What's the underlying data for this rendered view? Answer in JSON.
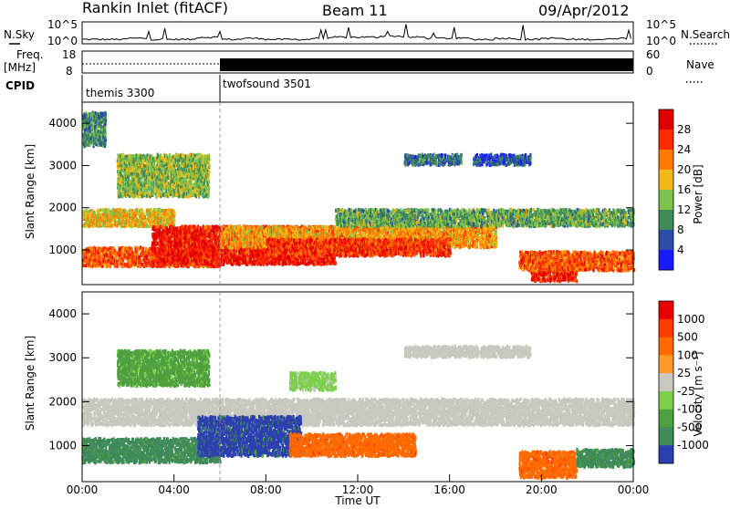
{
  "header": {
    "station": "Rankin Inlet (fitACF)",
    "beam": "Beam 11",
    "date": "09/Apr/2012"
  },
  "chart_data": [
    {
      "type": "line",
      "panel": "noise",
      "left_label": "N.Sky",
      "right_label": "N.Search",
      "left_ticks": [
        "10^5",
        "10^0"
      ],
      "right_ticks": [
        "10^5",
        "10^0"
      ],
      "x": [
        "00:00",
        "01:00",
        "02:00",
        "03:00",
        "04:00",
        "05:00",
        "06:00",
        "07:00",
        "08:00",
        "09:00",
        "10:00",
        "11:00",
        "12:00",
        "13:00",
        "14:00",
        "15:00",
        "16:00",
        "17:00",
        "18:00",
        "19:00",
        "20:00",
        "21:00",
        "22:00",
        "23:00",
        "24:00"
      ],
      "series": [
        {
          "values": [
            0.2,
            0.2,
            0.25,
            0.2,
            0.2,
            0.3,
            0.2,
            0.25,
            0.2,
            0.2,
            0.25,
            0.3,
            0.3,
            0.35,
            0.3,
            0.25,
            0.25,
            0.2,
            0.25,
            0.2,
            0.25,
            0.2,
            0.2,
            0.25,
            0.2
          ],
          "color": "#000000"
        }
      ]
    },
    {
      "type": "line",
      "panel": "frequency",
      "left_label": "Freq.",
      "left_unit": "[MHz]",
      "right_label": "Nave",
      "left_ticks": [
        "18",
        "8"
      ],
      "right_ticks": [
        "60",
        "0"
      ],
      "cpid_label": "CPID",
      "cpid_segments": [
        {
          "name": "themis 3300",
          "start": "00:00",
          "end": "06:00"
        },
        {
          "name": "twofsound 3501",
          "start": "06:00",
          "end": "24:00"
        }
      ],
      "series": [
        {
          "values": [
            11,
            11,
            11,
            11,
            11,
            11,
            11,
            11,
            11,
            11,
            11,
            11,
            11,
            11,
            11,
            11,
            11,
            11,
            11,
            11,
            11,
            11,
            11,
            11,
            11
          ],
          "color": "#000000"
        }
      ]
    },
    {
      "type": "heatmap",
      "panel": "power",
      "ylabel": "Slant Range [km]",
      "yticks": [
        "1000",
        "2000",
        "3000",
        "4000"
      ],
      "ylim": [
        180,
        4500
      ],
      "colorbar_label": "Power [dB]",
      "colorbar_ticks": [
        "4",
        "8",
        "12",
        "16",
        "20",
        "24",
        "28"
      ],
      "colorbar_colors": [
        "#1a1aff",
        "#2b4da8",
        "#3f8a5a",
        "#7cc24a",
        "#f0b818",
        "#ff7a00",
        "#ff2a00",
        "#e00000"
      ],
      "colorbar_range": [
        0,
        32
      ],
      "regions": [
        {
          "x0": 0.0,
          "x1": 6.0,
          "r0": 650,
          "r1": 1100,
          "value": 24
        },
        {
          "x0": 0.0,
          "x1": 4.0,
          "r0": 1600,
          "r1": 2000,
          "value": 18
        },
        {
          "x0": 3.0,
          "x1": 11.0,
          "r0": 700,
          "r1": 1600,
          "value": 28
        },
        {
          "x0": 6.0,
          "x1": 18.0,
          "r0": 1100,
          "r1": 1600,
          "value": 20
        },
        {
          "x0": 11.0,
          "x1": 24.0,
          "r0": 1600,
          "r1": 2000,
          "value": 12
        },
        {
          "x0": 8.0,
          "x1": 16.0,
          "r0": 900,
          "r1": 1300,
          "value": 26
        },
        {
          "x0": 19.5,
          "x1": 21.5,
          "r0": 300,
          "r1": 750,
          "value": 28
        },
        {
          "x0": 19.0,
          "x1": 24.0,
          "r0": 550,
          "r1": 1000,
          "value": 24
        },
        {
          "x0": 14.0,
          "x1": 16.5,
          "r0": 3050,
          "r1": 3300,
          "value": 8
        },
        {
          "x0": 17.0,
          "x1": 19.5,
          "r0": 3050,
          "r1": 3300,
          "value": 6
        },
        {
          "x0": 1.5,
          "x1": 5.5,
          "r0": 2300,
          "r1": 3300,
          "value": 14
        },
        {
          "x0": 0.0,
          "x1": 1.0,
          "r0": 3500,
          "r1": 4300,
          "value": 10
        }
      ]
    },
    {
      "type": "heatmap",
      "panel": "velocity",
      "xlabel": "Time UT",
      "xticks": [
        "00:00",
        "04:00",
        "08:00",
        "12:00",
        "16:00",
        "20:00",
        "00:00"
      ],
      "ylabel": "Slant Range [km]",
      "yticks": [
        "1000",
        "2000",
        "3000",
        "4000"
      ],
      "ylim": [
        180,
        4500
      ],
      "colorbar_label": "Velocity [m s⁻¹]",
      "colorbar_ticks": [
        "1000",
        "500",
        "100",
        "25",
        "-25",
        "-100",
        "-500",
        "-1000"
      ],
      "colorbar_colors": [
        "#2c3fb0",
        "#3f8a5a",
        "#4fa03f",
        "#7cd04a",
        "#c8c8c0",
        "#ff9a2a",
        "#ff6a00",
        "#ff3a00",
        "#e80000"
      ],
      "regions": [
        {
          "x0": 0.0,
          "x1": 24.0,
          "r0": 1500,
          "r1": 2100,
          "value": "ground"
        },
        {
          "x0": 0.0,
          "x1": 6.0,
          "r0": 650,
          "r1": 1200,
          "value": 500
        },
        {
          "x0": 5.0,
          "x1": 9.5,
          "r0": 800,
          "r1": 1700,
          "value": 1000
        },
        {
          "x0": 9.0,
          "x1": 14.5,
          "r0": 800,
          "r1": 1300,
          "value": -500
        },
        {
          "x0": 19.0,
          "x1": 21.5,
          "r0": 300,
          "r1": 900,
          "value": -500
        },
        {
          "x0": 21.5,
          "x1": 24.0,
          "r0": 550,
          "r1": 950,
          "value": 500
        },
        {
          "x0": 14.0,
          "x1": 19.5,
          "r0": 3050,
          "r1": 3300,
          "value": "ground"
        },
        {
          "x0": 1.5,
          "x1": 5.5,
          "r0": 2400,
          "r1": 3200,
          "value": 100
        },
        {
          "x0": 9.0,
          "x1": 11.0,
          "r0": 2300,
          "r1": 2700,
          "value": 25
        }
      ]
    }
  ]
}
